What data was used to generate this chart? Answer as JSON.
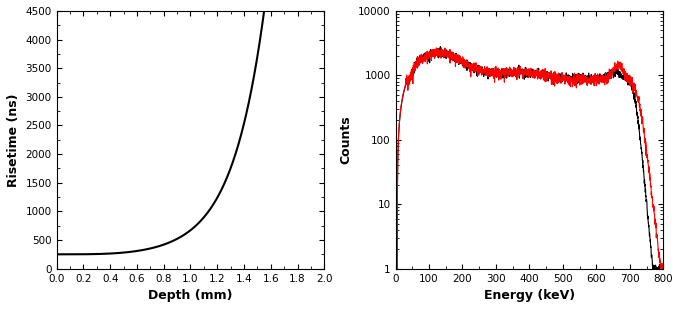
{
  "left_plot": {
    "xlabel": "Depth (mm)",
    "ylabel": "Risetime (ns)",
    "xlim": [
      0.0,
      2.0
    ],
    "ylim": [
      0,
      4500
    ],
    "xticks": [
      0.0,
      0.2,
      0.4,
      0.6,
      0.8,
      1.0,
      1.2,
      1.4,
      1.6,
      1.8,
      2.0
    ],
    "yticks": [
      0,
      500,
      1000,
      1500,
      2000,
      2500,
      3000,
      3500,
      4000,
      4500
    ],
    "curve_color": "#000000",
    "line_width": 1.5
  },
  "right_plot": {
    "xlabel": "Energy (keV)",
    "ylabel": "Counts",
    "xlim": [
      0,
      800
    ],
    "ylim": [
      1,
      10000
    ],
    "xticks": [
      0,
      100,
      200,
      300,
      400,
      500,
      600,
      700,
      800
    ],
    "black_color": "#000000",
    "red_color": "#ff0000",
    "line_width": 0.8
  }
}
